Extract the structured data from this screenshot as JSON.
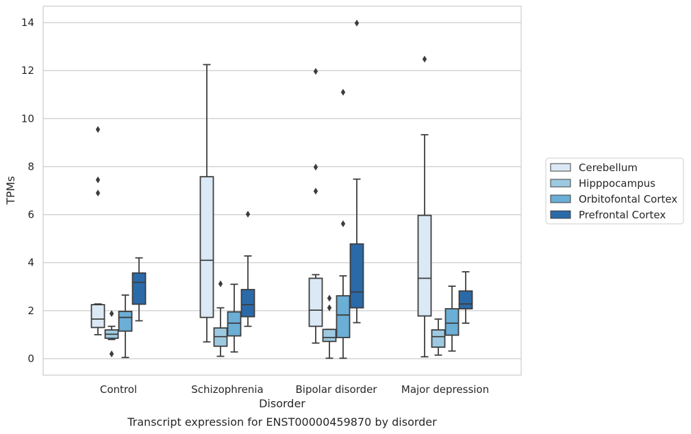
{
  "chart_data": {
    "type": "box",
    "caption": "Transcript expression for ENST00000459870 by disorder",
    "xlabel": "Disorder",
    "ylabel": "TPMs",
    "ylim": [
      -0.7,
      14.7
    ],
    "yticks": [
      0,
      2,
      4,
      6,
      8,
      10,
      12,
      14
    ],
    "grid": "horizontal",
    "legend_position": "right",
    "categories": [
      "Control",
      "Schizophrenia",
      "Bipolar disorder",
      "Major depression"
    ],
    "series": [
      {
        "name": "Cerebellum",
        "color": "#dbe9f6",
        "boxes": [
          {
            "whisker_low": 1.0,
            "q1": 1.3,
            "median": 1.65,
            "q3": 2.25,
            "whisker_high": 2.28,
            "outliers": [
              6.9,
              7.45,
              9.55
            ]
          },
          {
            "whisker_low": 0.7,
            "q1": 1.72,
            "median": 4.1,
            "q3": 7.58,
            "whisker_high": 12.25,
            "outliers": []
          },
          {
            "whisker_low": 0.65,
            "q1": 1.35,
            "median": 2.02,
            "q3": 3.35,
            "whisker_high": 3.5,
            "outliers": [
              6.98,
              7.98,
              11.97
            ]
          },
          {
            "whisker_low": 0.08,
            "q1": 1.78,
            "median": 3.35,
            "q3": 5.97,
            "whisker_high": 9.33,
            "outliers": [
              12.48
            ]
          }
        ]
      },
      {
        "name": "Hipppocampus",
        "color": "#9ecae1",
        "boxes": [
          {
            "whisker_low": 0.8,
            "q1": 0.85,
            "median": 1.02,
            "q3": 1.2,
            "whisker_high": 1.35,
            "outliers": [
              0.2,
              1.88
            ]
          },
          {
            "whisker_low": 0.1,
            "q1": 0.52,
            "median": 0.92,
            "q3": 1.28,
            "whisker_high": 2.12,
            "outliers": [
              3.12
            ]
          },
          {
            "whisker_low": 0.02,
            "q1": 0.72,
            "median": 0.88,
            "q3": 1.22,
            "whisker_high": 1.22,
            "outliers": [
              2.12,
              2.52
            ]
          },
          {
            "whisker_low": 0.15,
            "q1": 0.48,
            "median": 0.92,
            "q3": 1.2,
            "whisker_high": 1.65,
            "outliers": []
          }
        ]
      },
      {
        "name": "Orbitofontal Cortex",
        "color": "#6baed6",
        "boxes": [
          {
            "whisker_low": 0.05,
            "q1": 1.15,
            "median": 1.72,
            "q3": 1.97,
            "whisker_high": 2.65,
            "outliers": []
          },
          {
            "whisker_low": 0.28,
            "q1": 0.95,
            "median": 1.48,
            "q3": 1.95,
            "whisker_high": 3.1,
            "outliers": []
          },
          {
            "whisker_low": 0.02,
            "q1": 0.88,
            "median": 1.82,
            "q3": 2.62,
            "whisker_high": 3.45,
            "outliers": [
              5.62,
              11.1
            ]
          },
          {
            "whisker_low": 0.32,
            "q1": 0.98,
            "median": 1.48,
            "q3": 2.08,
            "whisker_high": 3.02,
            "outliers": []
          }
        ]
      },
      {
        "name": "Prefrontal Cortex",
        "color": "#2b6aa8",
        "boxes": [
          {
            "whisker_low": 1.58,
            "q1": 2.27,
            "median": 3.18,
            "q3": 3.57,
            "whisker_high": 4.2,
            "outliers": []
          },
          {
            "whisker_low": 1.35,
            "q1": 1.75,
            "median": 2.25,
            "q3": 2.88,
            "whisker_high": 4.28,
            "outliers": [
              6.02
            ]
          },
          {
            "whisker_low": 1.5,
            "q1": 2.12,
            "median": 2.78,
            "q3": 4.78,
            "whisker_high": 7.48,
            "outliers": [
              13.98
            ]
          },
          {
            "whisker_low": 1.48,
            "q1": 2.08,
            "median": 2.28,
            "q3": 2.82,
            "whisker_high": 3.62,
            "outliers": []
          }
        ]
      }
    ]
  }
}
